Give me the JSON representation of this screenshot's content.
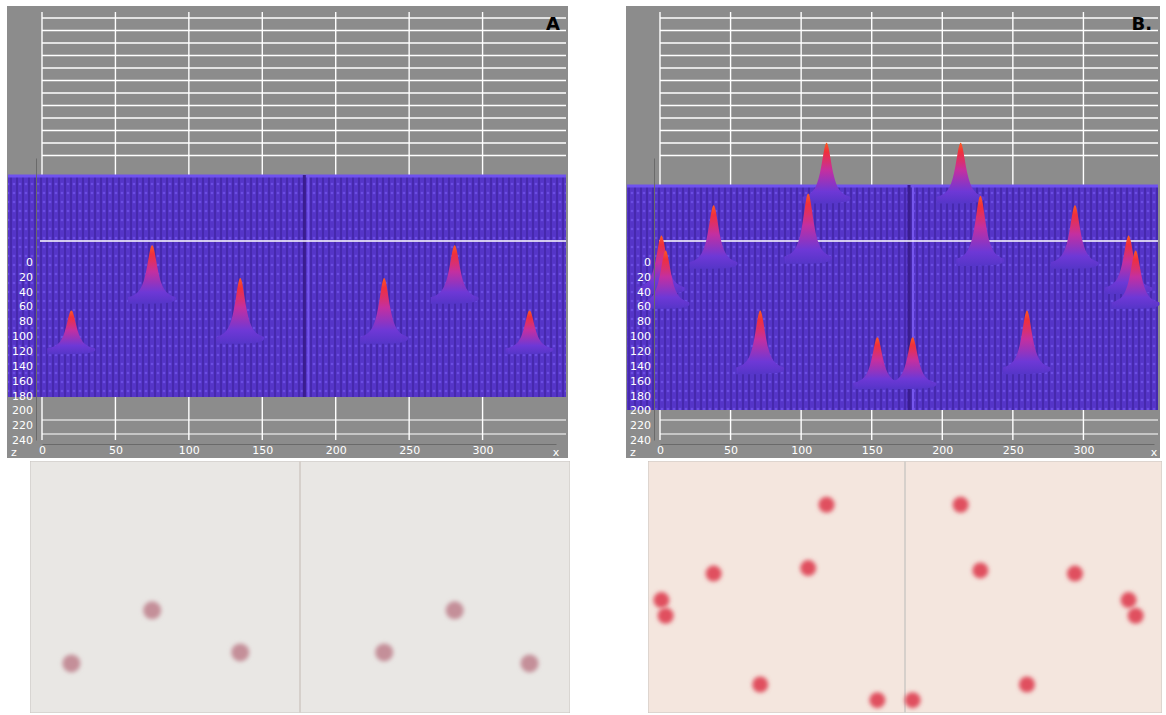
{
  "chart_data": [
    {
      "type": "surface",
      "title": "A",
      "x_label": "x",
      "y_label": "z",
      "xlim": [
        0,
        350
      ],
      "xticks": [
        0,
        50,
        100,
        150,
        200,
        250,
        300
      ],
      "ylim": [
        -140,
        240
      ],
      "yticks": [
        0,
        20,
        40,
        60,
        80,
        100,
        120,
        140,
        160,
        180,
        200,
        220,
        240
      ],
      "grid": true,
      "color": "#c48f99",
      "x": [
        75,
        281,
        135,
        233,
        20,
        332
      ],
      "z": [
        51,
        51,
        105,
        105,
        119,
        119
      ],
      "values": [
        74,
        74,
        84,
        84,
        54,
        54
      ]
    },
    {
      "type": "surface",
      "title": "B.",
      "x_label": "x",
      "y_label": "z",
      "xlim": [
        0,
        350
      ],
      "xticks": [
        0,
        50,
        100,
        150,
        200,
        250,
        300
      ],
      "ylim": [
        -140,
        240
      ],
      "yticks": [
        0,
        20,
        40,
        60,
        80,
        100,
        120,
        140,
        160,
        180,
        200,
        220,
        240
      ],
      "grid": true,
      "color": "#e0505f",
      "x": [
        118,
        213,
        105,
        227,
        38,
        294,
        1,
        332,
        4,
        337,
        71,
        260,
        154,
        179
      ],
      "z": [
        -84,
        -84,
        -3,
        0,
        4,
        4,
        38,
        38,
        58,
        58,
        146,
        146,
        166,
        166
      ],
      "values": [
        77,
        77,
        90,
        90,
        81,
        81,
        74,
        74,
        74,
        74,
        81,
        81,
        65,
        65
      ]
    }
  ]
}
